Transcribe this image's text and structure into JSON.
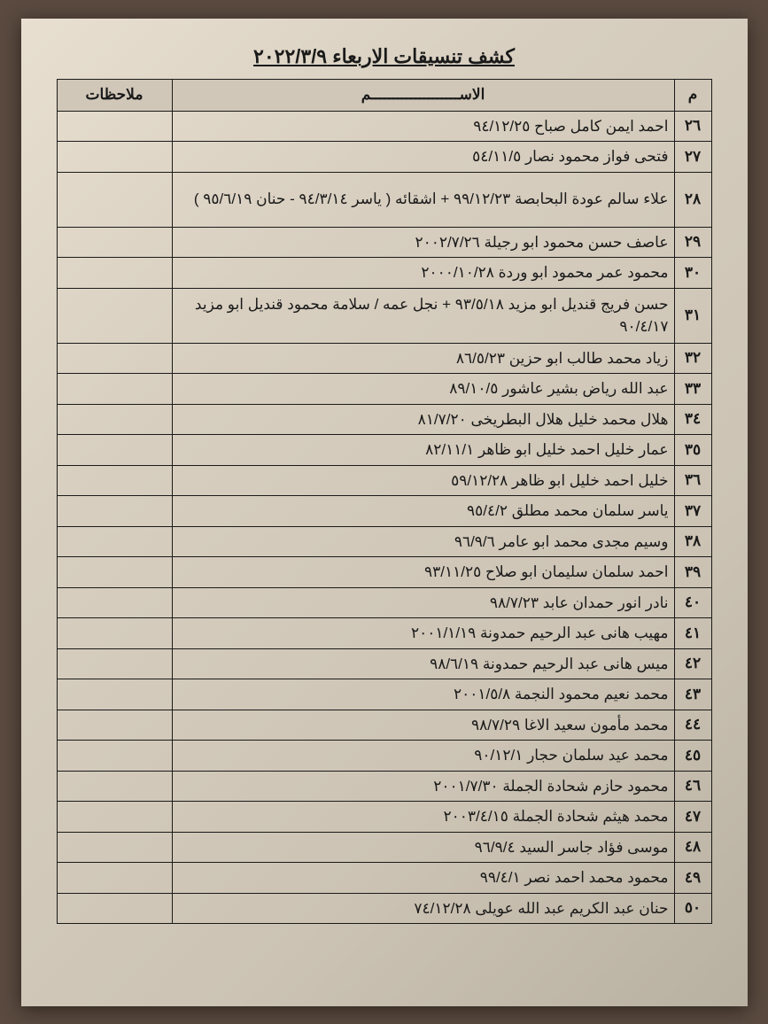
{
  "title": "كشف تنسيقات الاربعاء ٢٠٢٢/٣/٩",
  "headers": {
    "index": "م",
    "name": "الاســــــــــــــــــــم",
    "notes": "ملاحظات"
  },
  "rows": [
    {
      "idx": "٢٦",
      "name": "احمد ايمن كامل صباح ٩٤/١٢/٢٥",
      "notes": "",
      "lines": 1
    },
    {
      "idx": "٢٧",
      "name": "فتحى فواز محمود نصار ٥٤/١١/٥",
      "notes": "",
      "lines": 1
    },
    {
      "idx": "٢٨",
      "name": "علاء سالم عودة البحابصة ٩٩/١٢/٢٣ + اشقائه ( ياسر ٩٤/٣/١٤ - حنان ٩٥/٦/١٩ )",
      "notes": "",
      "lines": 2
    },
    {
      "idx": "٢٩",
      "name": "عاصف حسن محمود ابو رجيلة ٢٠٠٢/٧/٢٦",
      "notes": "",
      "lines": 1
    },
    {
      "idx": "٣٠",
      "name": "محمود عمر محمود ابو وردة ٢٠٠٠/١٠/٢٨",
      "notes": "",
      "lines": 1
    },
    {
      "idx": "٣١",
      "name": "حسن فريج قنديل ابو مزيد ٩٣/٥/١٨ + نجل عمه / سلامة محمود قنديل ابو مزيد ٩٠/٤/١٧",
      "notes": "",
      "lines": 2
    },
    {
      "idx": "٣٢",
      "name": "زياد محمد طالب ابو حزين ٨٦/٥/٢٣",
      "notes": "",
      "lines": 1
    },
    {
      "idx": "٣٣",
      "name": "عبد الله رياض بشير عاشور ٨٩/١٠/٥",
      "notes": "",
      "lines": 1
    },
    {
      "idx": "٣٤",
      "name": "هلال محمد خليل هلال البطريخى ٨١/٧/٢٠",
      "notes": "",
      "lines": 1
    },
    {
      "idx": "٣٥",
      "name": "عمار خليل احمد خليل ابو ظاهر ٨٢/١١/١",
      "notes": "",
      "lines": 1
    },
    {
      "idx": "٣٦",
      "name": "خليل احمد خليل ابو ظاهر ٥٩/١٢/٢٨",
      "notes": "",
      "lines": 1
    },
    {
      "idx": "٣٧",
      "name": "ياسر سلمان محمد مطلق ٩٥/٤/٢",
      "notes": "",
      "lines": 1
    },
    {
      "idx": "٣٨",
      "name": "وسيم مجدى محمد ابو عامر ٩٦/٩/٦",
      "notes": "",
      "lines": 1
    },
    {
      "idx": "٣٩",
      "name": "احمد سلمان سليمان ابو صلاح ٩٣/١١/٢٥",
      "notes": "",
      "lines": 1
    },
    {
      "idx": "٤٠",
      "name": "نادر انور حمدان عابد ٩٨/٧/٢٣",
      "notes": "",
      "lines": 1
    },
    {
      "idx": "٤١",
      "name": "مهيب هانى عبد الرحيم حمدونة ٢٠٠١/١/١٩",
      "notes": "",
      "lines": 1
    },
    {
      "idx": "٤٢",
      "name": "ميس هانى عبد الرحيم حمدونة ٩٨/٦/١٩",
      "notes": "",
      "lines": 1
    },
    {
      "idx": "٤٣",
      "name": "محمد نعيم محمود النجمة ٢٠٠١/٥/٨",
      "notes": "",
      "lines": 1
    },
    {
      "idx": "٤٤",
      "name": "محمد مأمون سعيد الاغا ٩٨/٧/٢٩",
      "notes": "",
      "lines": 1
    },
    {
      "idx": "٤٥",
      "name": "محمد عيد سلمان حجار ٩٠/١٢/١",
      "notes": "",
      "lines": 1
    },
    {
      "idx": "٤٦",
      "name": "محمود حازم شحادة الجملة ٢٠٠١/٧/٣٠",
      "notes": "",
      "lines": 1
    },
    {
      "idx": "٤٧",
      "name": "محمد هيثم شحادة الجملة ٢٠٠٣/٤/١٥",
      "notes": "",
      "lines": 1
    },
    {
      "idx": "٤٨",
      "name": "موسى فؤاد جاسر السيد ٩٦/٩/٤",
      "notes": "",
      "lines": 1
    },
    {
      "idx": "٤٩",
      "name": "محمود محمد احمد نصر ٩٩/٤/١",
      "notes": "",
      "lines": 1
    },
    {
      "idx": "٥٠",
      "name": "حنان عبد الكريم عبد الله عويلى ٧٤/١٢/٢٨",
      "notes": "",
      "lines": 1
    }
  ],
  "colors": {
    "paper_bg_start": "#e8dfd0",
    "paper_bg_end": "#b8b0a0",
    "header_bg": "#d0c7b8",
    "border": "#1a1a1a",
    "text": "#1a1a1a",
    "outer_bg": "#5a4a3f"
  },
  "typography": {
    "title_fontsize": 22,
    "cell_fontsize": 17,
    "font_family": "Traditional Arabic, Arial"
  },
  "layout": {
    "doc_width": 867,
    "doc_height": 1156,
    "paper_width": 820,
    "paper_height": 1115,
    "col_widths": {
      "index": 42,
      "notes": 130
    },
    "row_height_single": 34,
    "row_height_double": 62
  }
}
